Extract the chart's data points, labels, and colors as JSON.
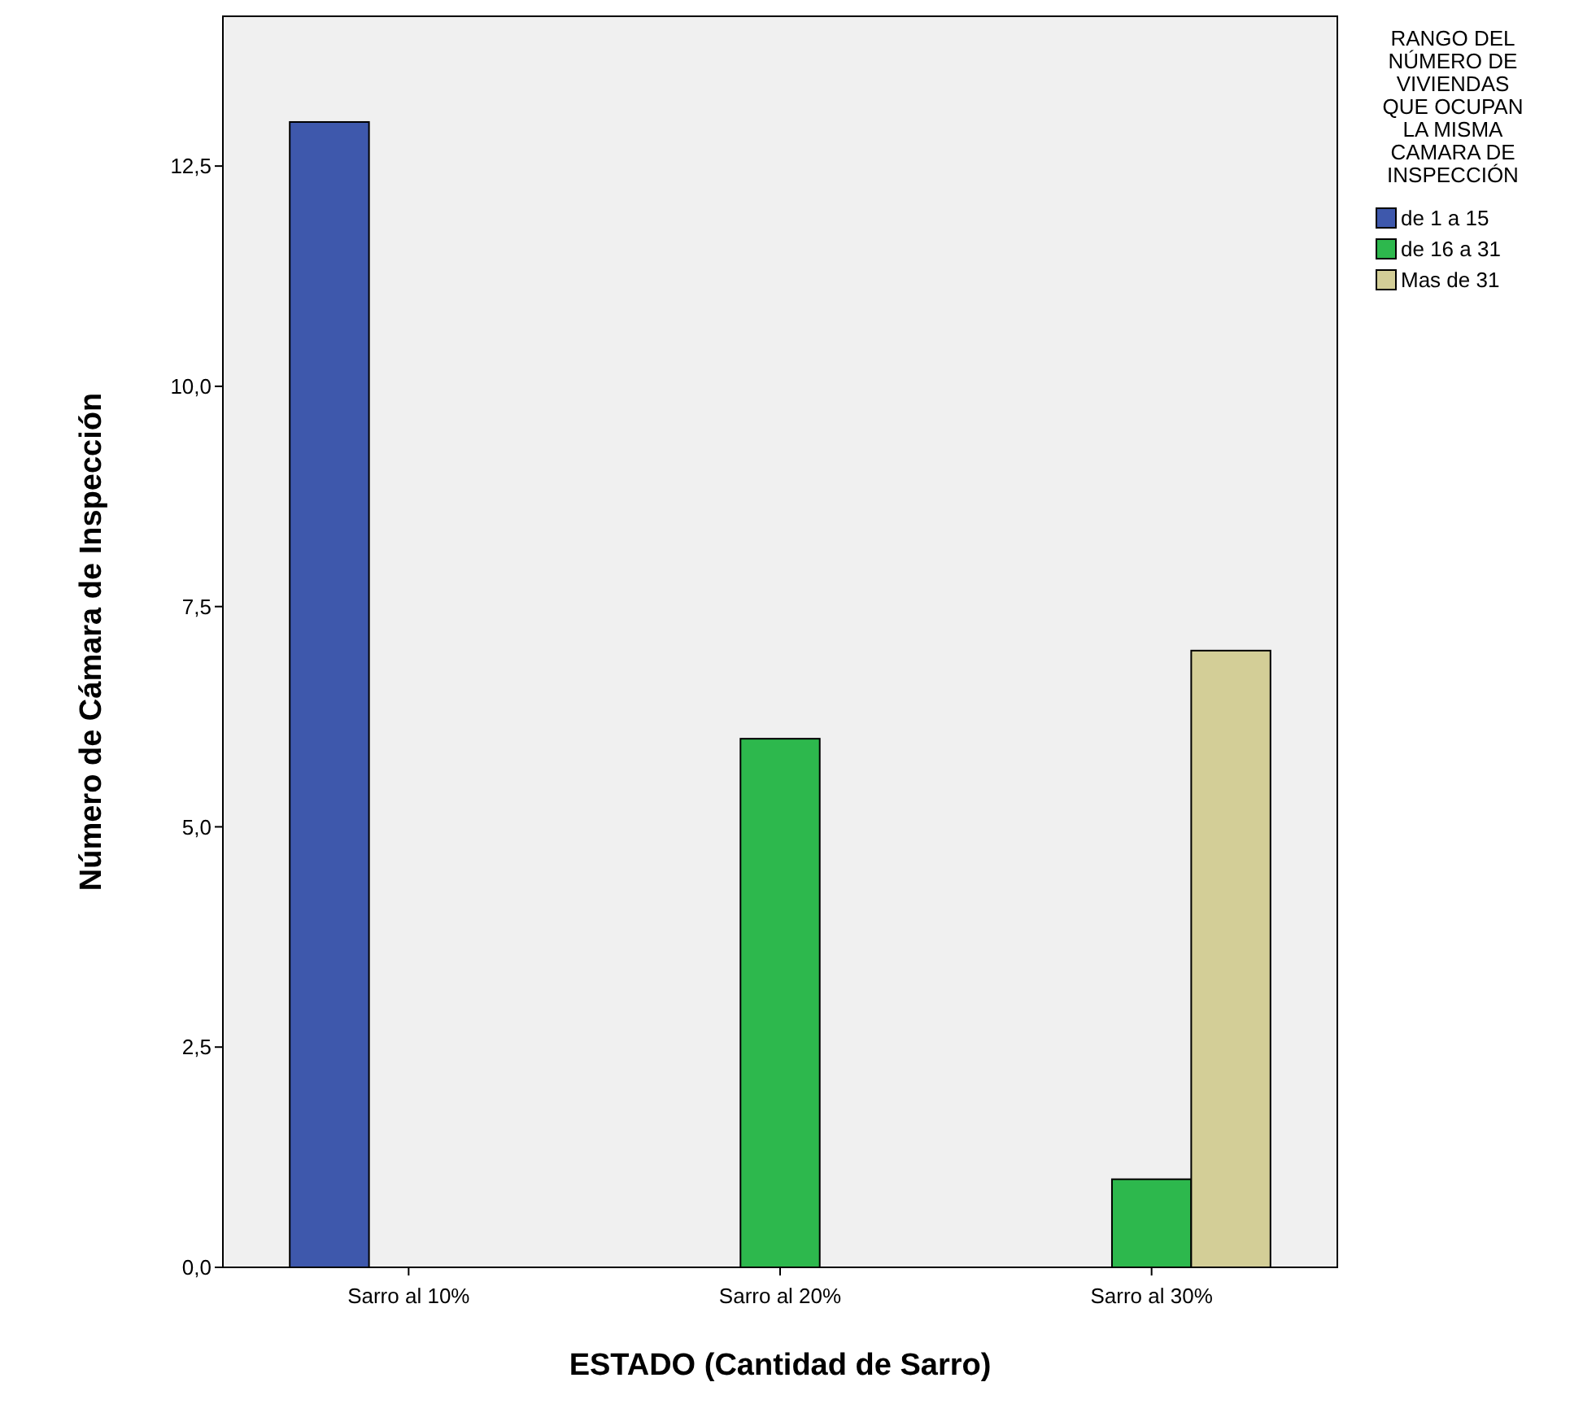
{
  "chart_data": {
    "type": "bar",
    "xlabel": "ESTADO (Cantidad de Sarro)",
    "ylabel": "Número de Cámara de Inspección",
    "legend_title": "RANGO DEL NÚMERO DE VIVIENDAS QUE OCUPAN LA MISMA CAMARA DE INSPECCIÓN",
    "categories": [
      "Sarro al 10%",
      "Sarro al 20%",
      "Sarro al 30%"
    ],
    "series": [
      {
        "name": "de 1 a 15",
        "color": "#3e58ac",
        "values": [
          13,
          null,
          null
        ]
      },
      {
        "name": "de 16 a 31",
        "color": "#2db84d",
        "values": [
          null,
          6,
          1
        ]
      },
      {
        "name": "Mas de 31",
        "color": "#d3ce97",
        "values": [
          null,
          null,
          7
        ]
      }
    ],
    "ylim": [
      0,
      14.2
    ],
    "yticks": [
      {
        "value": 0,
        "label": "0,0"
      },
      {
        "value": 2.5,
        "label": "2,5"
      },
      {
        "value": 5,
        "label": "5,0"
      },
      {
        "value": 7.5,
        "label": "7,5"
      },
      {
        "value": 10,
        "label": "10,0"
      },
      {
        "value": 12.5,
        "label": "12,5"
      }
    ],
    "grid": false,
    "legend": "right"
  }
}
